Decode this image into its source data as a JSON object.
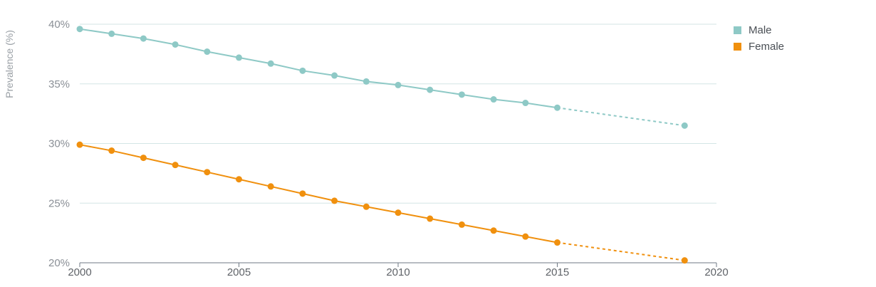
{
  "chart_data": {
    "type": "line",
    "title": "",
    "xlabel": "",
    "ylabel": "Prevalence (%)",
    "xlim": [
      2000,
      2020
    ],
    "ylim": [
      20,
      40
    ],
    "x_ticks": [
      "2000",
      "2005",
      "2010",
      "2015",
      "2020"
    ],
    "y_ticks": [
      "20%",
      "25%",
      "30%",
      "35%",
      "40%"
    ],
    "grid": true,
    "legend_position": "top-right",
    "projection_start": 2015,
    "series": [
      {
        "name": "Male",
        "color": "#8ec9c6",
        "x": [
          2000,
          2001,
          2002,
          2003,
          2004,
          2005,
          2006,
          2007,
          2008,
          2009,
          2010,
          2011,
          2012,
          2013,
          2014,
          2015,
          2019
        ],
        "values": [
          39.6,
          39.2,
          38.8,
          38.3,
          37.7,
          37.2,
          36.7,
          36.1,
          35.7,
          35.2,
          34.9,
          34.5,
          34.1,
          33.7,
          33.4,
          33.0,
          31.5
        ]
      },
      {
        "name": "Female",
        "color": "#f0900e",
        "x": [
          2000,
          2001,
          2002,
          2003,
          2004,
          2005,
          2006,
          2007,
          2008,
          2009,
          2010,
          2011,
          2012,
          2013,
          2014,
          2015,
          2019
        ],
        "values": [
          29.9,
          29.4,
          28.8,
          28.2,
          27.6,
          27.0,
          26.4,
          25.8,
          25.2,
          24.7,
          24.2,
          23.7,
          23.2,
          22.7,
          22.2,
          21.7,
          20.2
        ]
      }
    ]
  }
}
